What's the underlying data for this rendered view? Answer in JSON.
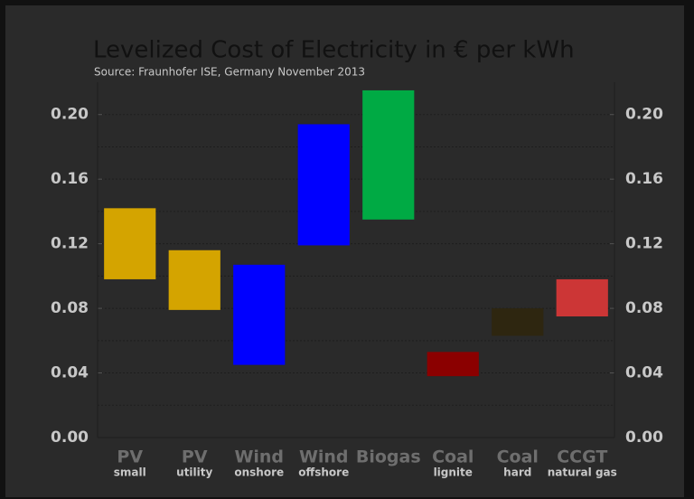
{
  "chart_data": {
    "type": "range-bar",
    "title": "Levelized Cost of Electricity in € per kWh",
    "subtitle": "Source: Fraunhofer ISE, Germany November 2013",
    "categories": [
      [
        "PV",
        "small"
      ],
      [
        "PV",
        "utility"
      ],
      [
        "Wind",
        "onshore"
      ],
      [
        "Wind",
        "offshore"
      ],
      [
        "Biogas",
        ""
      ],
      [
        "Coal",
        "lignite"
      ],
      [
        "Coal",
        "hard"
      ],
      [
        "CCGT",
        "natural gas"
      ]
    ],
    "low": [
      0.098,
      0.079,
      0.045,
      0.119,
      0.135,
      0.038,
      0.063,
      0.075
    ],
    "high": [
      0.142,
      0.116,
      0.107,
      0.194,
      0.215,
      0.053,
      0.08,
      0.098
    ],
    "colors": [
      "#d4a400",
      "#d4a400",
      "#0000ff",
      "#0000ff",
      "#00aa44",
      "#8b0000",
      "#2e2610",
      "#cc3636"
    ],
    "ylim": [
      0,
      0.22
    ],
    "yticks": [
      {
        "value": 0,
        "label": "0.00"
      },
      {
        "value": 0.04,
        "label": "0.04"
      },
      {
        "value": 0.08,
        "label": "0.08"
      },
      {
        "value": 0.12,
        "label": "0.12"
      },
      {
        "value": 0.16,
        "label": "0.16"
      },
      {
        "value": 0.2,
        "label": "0.20"
      }
    ],
    "minor_yticks": [
      0.02,
      0.06,
      0.1,
      0.14,
      0.18
    ],
    "grid": true
  }
}
